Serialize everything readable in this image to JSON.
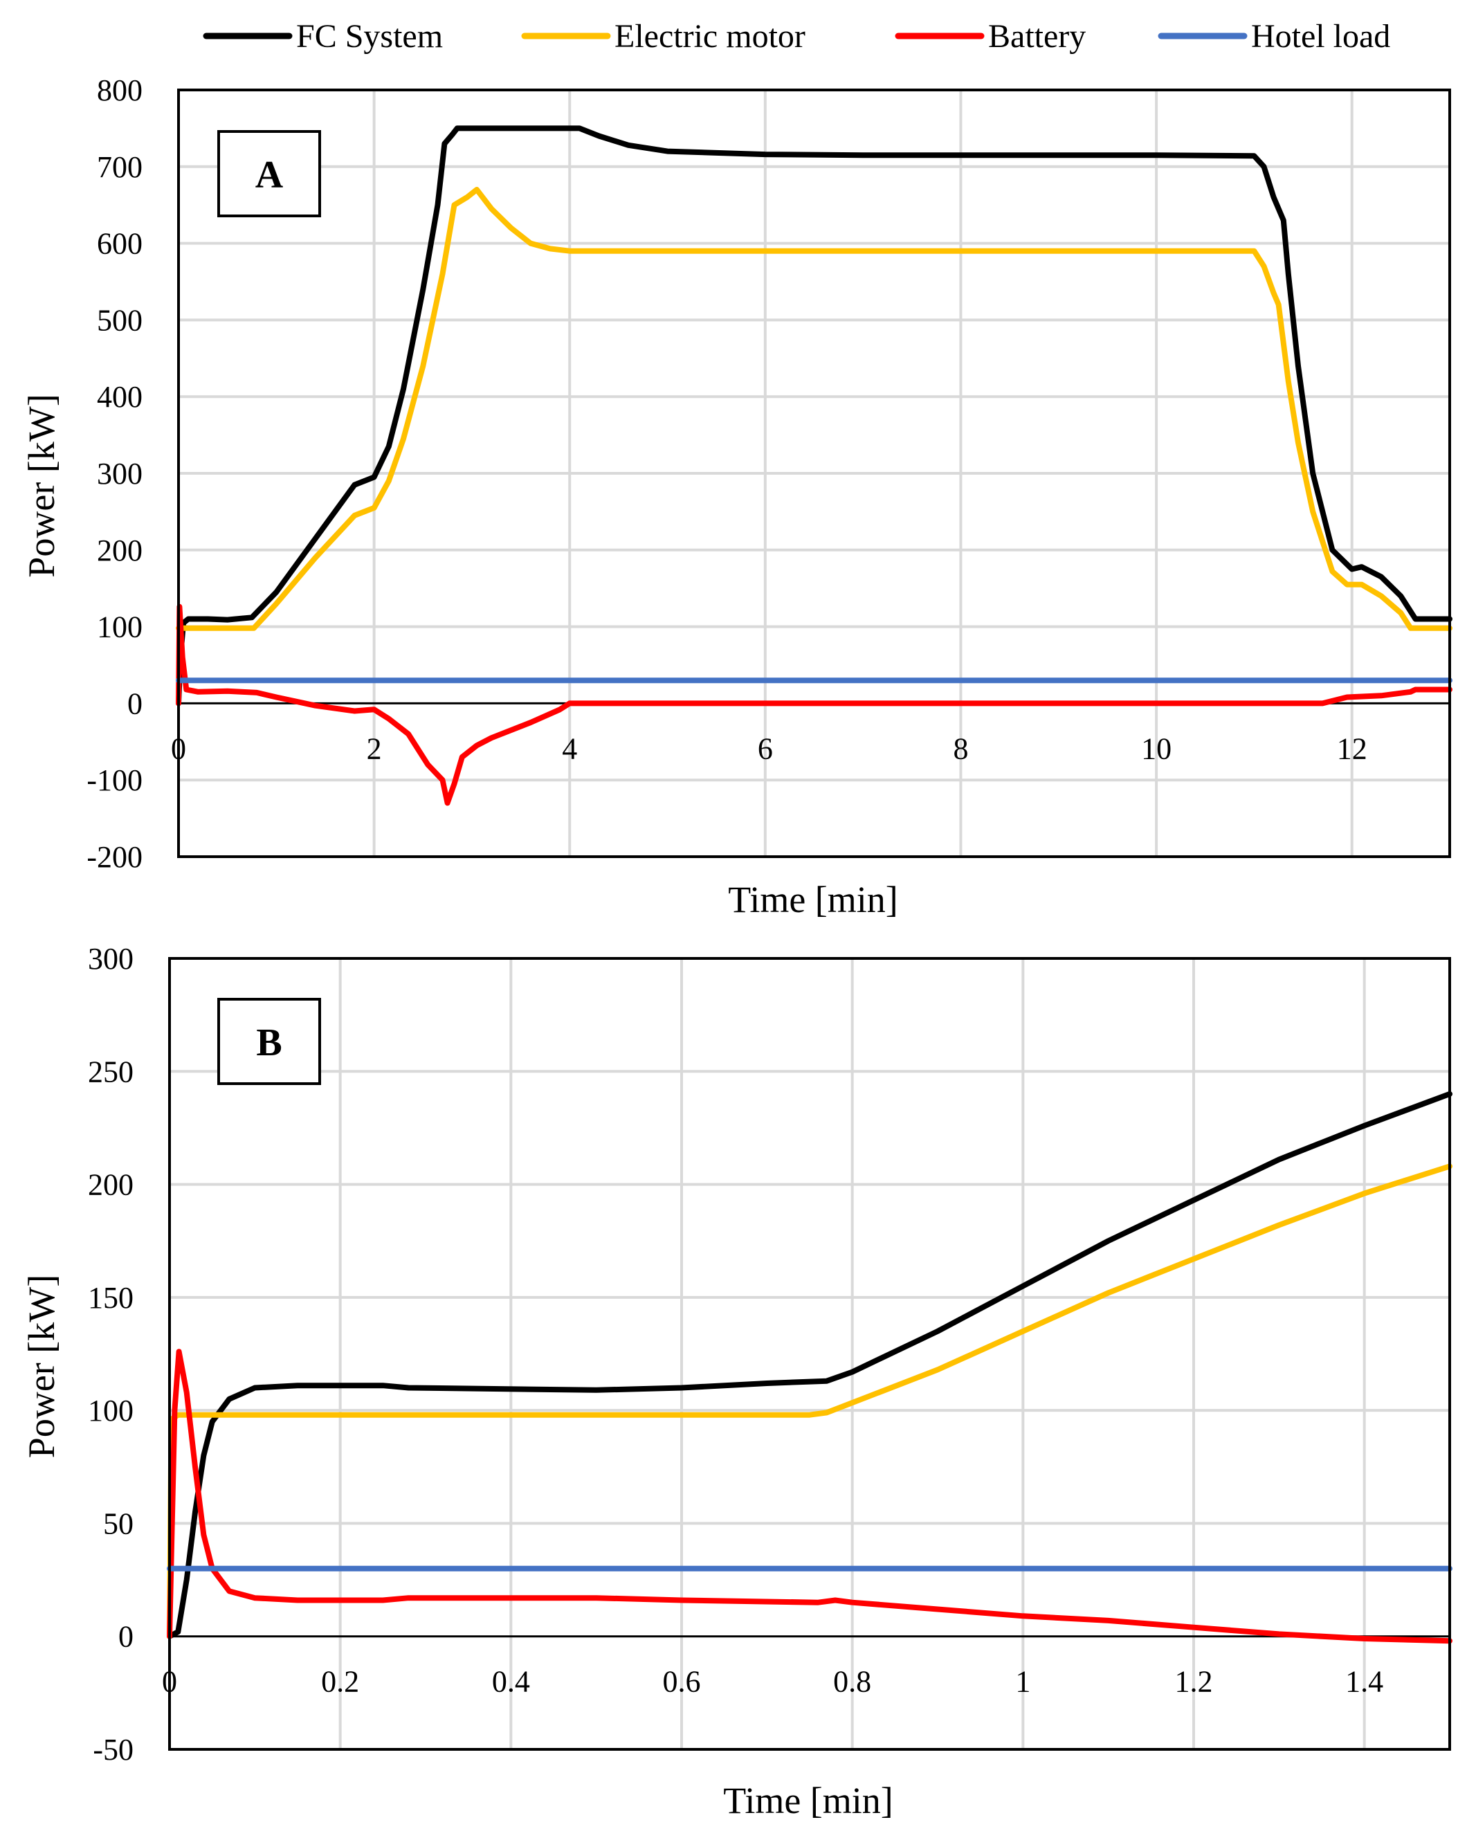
{
  "legend": [
    {
      "name": "FC System",
      "color": "#000000"
    },
    {
      "name": "Electric motor",
      "color": "#FFC000"
    },
    {
      "name": "Battery",
      "color": "#FF0000"
    },
    {
      "name": "Hotel load",
      "color": "#4472C4"
    }
  ],
  "chart_data": [
    {
      "type": "line",
      "panel_label": "A",
      "xlabel": "Time [min]",
      "ylabel": "Power [kW]",
      "xlim": [
        0,
        13
      ],
      "ylim": [
        -200,
        800
      ],
      "xticks": [
        0,
        2,
        4,
        6,
        8,
        10,
        12
      ],
      "xtick_labels": [
        "0",
        "2",
        "4",
        "6",
        "8",
        "10",
        "12"
      ],
      "yticks": [
        -200,
        -100,
        0,
        100,
        200,
        300,
        400,
        500,
        600,
        700,
        800
      ],
      "ytick_labels": [
        "-200",
        "-100",
        "0",
        "100",
        "200",
        "300",
        "400",
        "500",
        "600",
        "700",
        "800"
      ],
      "grid": true,
      "series": [
        {
          "name": "FC System",
          "color": "#000000",
          "points": [
            [
              0,
              0
            ],
            [
              0.02,
              60
            ],
            [
              0.05,
              105
            ],
            [
              0.1,
              110
            ],
            [
              0.3,
              110
            ],
            [
              0.5,
              109
            ],
            [
              0.75,
              112
            ],
            [
              1,
              145
            ],
            [
              1.4,
              215
            ],
            [
              1.8,
              285
            ],
            [
              2,
              295
            ],
            [
              2.15,
              335
            ],
            [
              2.3,
              410
            ],
            [
              2.5,
              540
            ],
            [
              2.65,
              650
            ],
            [
              2.72,
              730
            ],
            [
              2.8,
              742
            ],
            [
              2.85,
              750
            ],
            [
              3.5,
              750
            ],
            [
              4.1,
              750
            ],
            [
              4.3,
              740
            ],
            [
              4.6,
              728
            ],
            [
              5,
              720
            ],
            [
              5.5,
              718
            ],
            [
              6,
              716
            ],
            [
              7,
              715
            ],
            [
              8,
              715
            ],
            [
              9,
              715
            ],
            [
              10,
              715
            ],
            [
              11,
              714
            ],
            [
              11.1,
              700
            ],
            [
              11.2,
              660
            ],
            [
              11.3,
              630
            ],
            [
              11.35,
              560
            ],
            [
              11.45,
              440
            ],
            [
              11.6,
              300
            ],
            [
              11.8,
              200
            ],
            [
              12,
              175
            ],
            [
              12.1,
              178
            ],
            [
              12.3,
              165
            ],
            [
              12.5,
              140
            ],
            [
              12.65,
              110
            ],
            [
              13,
              110
            ]
          ]
        },
        {
          "name": "Electric motor",
          "color": "#FFC000",
          "points": [
            [
              0,
              98
            ],
            [
              0.5,
              98
            ],
            [
              0.77,
              98
            ],
            [
              1,
              130
            ],
            [
              1.4,
              190
            ],
            [
              1.8,
              245
            ],
            [
              2,
              255
            ],
            [
              2.15,
              290
            ],
            [
              2.3,
              345
            ],
            [
              2.5,
              440
            ],
            [
              2.7,
              560
            ],
            [
              2.82,
              650
            ],
            [
              2.95,
              660
            ],
            [
              3.05,
              670
            ],
            [
              3.2,
              645
            ],
            [
              3.4,
              620
            ],
            [
              3.6,
              600
            ],
            [
              3.8,
              593
            ],
            [
              4,
              590
            ],
            [
              5,
              590
            ],
            [
              6,
              590
            ],
            [
              7,
              590
            ],
            [
              8,
              590
            ],
            [
              9,
              590
            ],
            [
              10,
              590
            ],
            [
              11,
              590
            ],
            [
              11.1,
              570
            ],
            [
              11.2,
              535
            ],
            [
              11.25,
              520
            ],
            [
              11.35,
              420
            ],
            [
              11.45,
              340
            ],
            [
              11.6,
              250
            ],
            [
              11.8,
              172
            ],
            [
              11.95,
              155
            ],
            [
              12.1,
              155
            ],
            [
              12.3,
              140
            ],
            [
              12.5,
              118
            ],
            [
              12.6,
              98
            ],
            [
              13,
              98
            ]
          ]
        },
        {
          "name": "Battery",
          "color": "#FF0000",
          "points": [
            [
              0,
              0
            ],
            [
              0.01,
              126
            ],
            [
              0.04,
              60
            ],
            [
              0.08,
              18
            ],
            [
              0.2,
              15
            ],
            [
              0.5,
              16
            ],
            [
              0.8,
              14
            ],
            [
              1,
              8
            ],
            [
              1.4,
              -3
            ],
            [
              1.8,
              -10
            ],
            [
              2,
              -8
            ],
            [
              2.15,
              -20
            ],
            [
              2.35,
              -40
            ],
            [
              2.55,
              -80
            ],
            [
              2.7,
              -100
            ],
            [
              2.75,
              -130
            ],
            [
              2.82,
              -105
            ],
            [
              2.9,
              -70
            ],
            [
              3.05,
              -55
            ],
            [
              3.2,
              -45
            ],
            [
              3.6,
              -25
            ],
            [
              3.9,
              -8
            ],
            [
              4,
              0
            ],
            [
              5,
              0
            ],
            [
              6,
              0
            ],
            [
              7,
              0
            ],
            [
              8,
              0
            ],
            [
              9,
              0
            ],
            [
              10,
              0
            ],
            [
              11,
              0
            ],
            [
              11.7,
              0
            ],
            [
              11.95,
              8
            ],
            [
              12.3,
              10
            ],
            [
              12.6,
              15
            ],
            [
              12.65,
              18
            ],
            [
              13,
              18
            ]
          ]
        },
        {
          "name": "Hotel load",
          "color": "#4472C4",
          "points": [
            [
              0,
              30
            ],
            [
              13,
              30
            ]
          ]
        }
      ]
    },
    {
      "type": "line",
      "panel_label": "B",
      "xlabel": "Time [min]",
      "ylabel": "Power [kW]",
      "xlim": [
        0,
        1.5
      ],
      "ylim": [
        -50,
        300
      ],
      "xticks": [
        0,
        0.2,
        0.4,
        0.6,
        0.8,
        1.0,
        1.2,
        1.4
      ],
      "xtick_labels": [
        "0",
        "0.2",
        "0.4",
        "0.6",
        "0.8",
        "1",
        "1.2",
        "1.4"
      ],
      "yticks": [
        -50,
        0,
        50,
        100,
        150,
        200,
        250,
        300
      ],
      "ytick_labels": [
        "-50",
        "0",
        "50",
        "100",
        "150",
        "200",
        "250",
        "300"
      ],
      "grid": true,
      "series": [
        {
          "name": "FC System",
          "color": "#000000",
          "points": [
            [
              0,
              0
            ],
            [
              0.01,
              2
            ],
            [
              0.02,
              25
            ],
            [
              0.03,
              55
            ],
            [
              0.04,
              80
            ],
            [
              0.05,
              95
            ],
            [
              0.07,
              105
            ],
            [
              0.1,
              110
            ],
            [
              0.15,
              111
            ],
            [
              0.25,
              111
            ],
            [
              0.28,
              110
            ],
            [
              0.5,
              109
            ],
            [
              0.6,
              110
            ],
            [
              0.7,
              112
            ],
            [
              0.77,
              113
            ],
            [
              0.8,
              117
            ],
            [
              0.9,
              135
            ],
            [
              1,
              155
            ],
            [
              1.1,
              175
            ],
            [
              1.2,
              193
            ],
            [
              1.3,
              211
            ],
            [
              1.4,
              226
            ],
            [
              1.5,
              240
            ]
          ]
        },
        {
          "name": "Electric motor",
          "color": "#FFC000",
          "points": [
            [
              0,
              0
            ],
            [
              0.002,
              96
            ],
            [
              0.01,
              98
            ],
            [
              0.3,
              98
            ],
            [
              0.5,
              98
            ],
            [
              0.75,
              98
            ],
            [
              0.77,
              99
            ],
            [
              0.9,
              118
            ],
            [
              1,
              135
            ],
            [
              1.1,
              152
            ],
            [
              1.2,
              167
            ],
            [
              1.3,
              182
            ],
            [
              1.4,
              196
            ],
            [
              1.5,
              208
            ]
          ]
        },
        {
          "name": "Battery",
          "color": "#FF0000",
          "points": [
            [
              0,
              0
            ],
            [
              0.006,
              100
            ],
            [
              0.011,
              126
            ],
            [
              0.02,
              108
            ],
            [
              0.03,
              75
            ],
            [
              0.04,
              45
            ],
            [
              0.05,
              30
            ],
            [
              0.07,
              20
            ],
            [
              0.1,
              17
            ],
            [
              0.15,
              16
            ],
            [
              0.25,
              16
            ],
            [
              0.28,
              17
            ],
            [
              0.4,
              17
            ],
            [
              0.5,
              17
            ],
            [
              0.6,
              16
            ],
            [
              0.76,
              15
            ],
            [
              0.78,
              16
            ],
            [
              0.8,
              15
            ],
            [
              0.9,
              12
            ],
            [
              1,
              9
            ],
            [
              1.1,
              7
            ],
            [
              1.2,
              4
            ],
            [
              1.3,
              1
            ],
            [
              1.4,
              -1
            ],
            [
              1.5,
              -2
            ]
          ]
        },
        {
          "name": "Hotel load",
          "color": "#4472C4",
          "points": [
            [
              0,
              30
            ],
            [
              1.5,
              30
            ]
          ]
        }
      ]
    }
  ]
}
